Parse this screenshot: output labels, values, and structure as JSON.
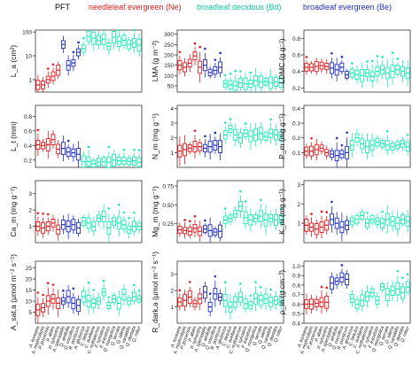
{
  "legend": {
    "title": "PFT",
    "items": [
      {
        "label": "needleleaf evergreen (Ne)",
        "color": "#e41a1c"
      },
      {
        "label": "broadleaf decidous (Bd)",
        "color": "#1de9b6"
      },
      {
        "label": "broadleaf evergreen (Be)",
        "color": "#1f2fbf"
      }
    ]
  },
  "species": [
    "A. koreana",
    "A. nephrolepis",
    "P. jezoensis",
    "P. abies",
    "P. sylvestris",
    "A. spectabilis",
    "Q. alnifolia",
    "Q. coccifera",
    "R. ponticum",
    "A. glutinosa",
    "C. betulus",
    "C. avellana",
    "C. nutkatensis",
    "F. sylvatica",
    "F. excelsior",
    "Q. mongolica",
    "Q. serrata",
    "Q. aliena",
    "Q. variabilis",
    "Q. dentata",
    "Q. robur"
  ],
  "species_pft": [
    "Ne",
    "Ne",
    "Ne",
    "Ne",
    "Ne",
    "Be",
    "Be",
    "Be",
    "Be",
    "Bd",
    "Bd",
    "Bd",
    "Bd",
    "Bd",
    "Bd",
    "Bd",
    "Bd",
    "Bd",
    "Bd",
    "Bd",
    "Bd"
  ],
  "chart_data": [
    {
      "type": "box",
      "ylabel": "L_a (cm²)",
      "scale": "log",
      "ylim": [
        0.3,
        120
      ],
      "ticks": [
        1,
        10,
        100
      ],
      "tick_labels": [
        "1",
        "10",
        "100"
      ],
      "medians": [
        0.6,
        0.6,
        1.0,
        1.4,
        2.5,
        30,
        4,
        5,
        14,
        20,
        65,
        55,
        45,
        50,
        25,
        60,
        40,
        45,
        30,
        35,
        28
      ]
    },
    {
      "type": "box",
      "ylabel": "LMA (g m⁻²)",
      "scale": "linear",
      "ylim": [
        20,
        320
      ],
      "ticks": [
        50,
        100,
        150,
        200,
        250,
        300
      ],
      "tick_labels": [
        "50",
        "100",
        "150",
        "200",
        "250",
        "300"
      ],
      "medians": [
        150,
        140,
        160,
        195,
        140,
        150,
        115,
        125,
        140,
        60,
        55,
        50,
        65,
        60,
        60,
        75,
        70,
        70,
        65,
        70,
        65
      ]
    },
    {
      "type": "box",
      "ylabel": "LDMC (g g⁻¹)",
      "scale": "linear",
      "ylim": [
        0.15,
        0.9
      ],
      "ticks": [
        0.2,
        0.4,
        0.6,
        0.8
      ],
      "tick_labels": [
        "0.2",
        "0.4",
        "0.6",
        "0.8"
      ],
      "medians": [
        0.45,
        0.45,
        0.46,
        0.47,
        0.46,
        0.44,
        0.42,
        0.45,
        0.36,
        0.38,
        0.36,
        0.35,
        0.38,
        0.34,
        0.4,
        0.42,
        0.38,
        0.4,
        0.42,
        0.4,
        0.38
      ]
    },
    {
      "type": "box",
      "ylabel": "L_t (mm)",
      "scale": "linear",
      "ylim": [
        0.1,
        0.95
      ],
      "ticks": [
        0.2,
        0.4,
        0.6,
        0.8
      ],
      "tick_labels": [
        "0.2",
        "0.4",
        "0.6",
        "0.8"
      ],
      "medians": [
        0.41,
        0.4,
        0.41,
        0.48,
        0.35,
        0.36,
        0.31,
        0.3,
        0.28,
        0.18,
        0.18,
        0.15,
        0.17,
        0.18,
        0.17,
        0.2,
        0.19,
        0.19,
        0.18,
        0.19,
        0.17
      ]
    },
    {
      "type": "box",
      "ylabel": "N_m (mg g⁻¹)",
      "scale": "linear",
      "ylim": [
        0,
        4.2
      ],
      "ticks": [
        1,
        2,
        3,
        4
      ],
      "tick_labels": [
        "1",
        "2",
        "3",
        "4"
      ],
      "medians": [
        1.1,
        1.2,
        1.3,
        1.4,
        1.4,
        1.3,
        1.4,
        1.5,
        1.4,
        2.2,
        2.6,
        2.2,
        2.0,
        2.3,
        2.1,
        2.2,
        2.3,
        2.1,
        2.3,
        2.2,
        2.1
      ]
    },
    {
      "type": "box",
      "ylabel": "P_m (mg g⁻¹)",
      "scale": "linear",
      "ylim": [
        0,
        0.42
      ],
      "ticks": [
        0.1,
        0.2,
        0.3,
        0.4
      ],
      "tick_labels": [
        "0.1",
        "0.2",
        "0.3",
        "0.4"
      ],
      "medians": [
        0.11,
        0.11,
        0.12,
        0.13,
        0.1,
        0.09,
        0.08,
        0.09,
        0.1,
        0.15,
        0.2,
        0.16,
        0.14,
        0.15,
        0.17,
        0.16,
        0.15,
        0.14,
        0.15,
        0.16,
        0.14
      ]
    },
    {
      "type": "box",
      "ylabel": "Ca_m (mg g⁻¹)",
      "scale": "linear",
      "ylim": [
        0,
        3.8
      ],
      "ticks": [
        1,
        2,
        3
      ],
      "tick_labels": [
        "1",
        "2",
        "3"
      ],
      "medians": [
        1.0,
        0.9,
        1.0,
        1.2,
        0.8,
        1.1,
        1.0,
        1.1,
        0.9,
        1.3,
        1.2,
        1.0,
        1.5,
        1.6,
        0.9,
        1.3,
        1.2,
        1.1,
        0.8,
        1.0,
        1.0
      ]
    },
    {
      "type": "box",
      "ylabel": "Mg_m (mg g⁻¹)",
      "scale": "linear",
      "ylim": [
        0,
        0.82
      ],
      "ticks": [
        0.25,
        0.5,
        0.75
      ],
      "tick_labels": [
        "0.25",
        "0.50",
        "0.75"
      ],
      "medians": [
        0.17,
        0.16,
        0.15,
        0.19,
        0.15,
        0.18,
        0.16,
        0.14,
        0.15,
        0.3,
        0.32,
        0.38,
        0.48,
        0.33,
        0.3,
        0.32,
        0.35,
        0.3,
        0.32,
        0.3,
        0.31
      ]
    },
    {
      "type": "box",
      "ylabel": "K_m (mg g⁻¹)",
      "scale": "linear",
      "ylim": [
        0,
        3.2
      ],
      "ticks": [
        1,
        2,
        3
      ],
      "tick_labels": [
        "1",
        "2",
        "3"
      ],
      "medians": [
        0.9,
        0.8,
        0.7,
        0.8,
        0.9,
        1.2,
        1.0,
        0.8,
        0.9,
        1.1,
        1.2,
        1.4,
        1.0,
        1.2,
        1.1,
        1.0,
        1.2,
        1.1,
        1.0,
        1.2,
        1.1
      ]
    },
    {
      "type": "box",
      "ylabel": "A_sat,a (μmol m⁻² s⁻¹)",
      "scale": "linear",
      "ylim": [
        0,
        28
      ],
      "ticks": [
        5,
        10,
        15,
        20,
        25
      ],
      "tick_labels": [
        "5",
        "10",
        "15",
        "20",
        "25"
      ],
      "medians": [
        6,
        7,
        10,
        11,
        9,
        10,
        12,
        9,
        8,
        12,
        10,
        9,
        10,
        14,
        8,
        11,
        9,
        13,
        10,
        12,
        11
      ]
    },
    {
      "type": "box",
      "ylabel": "R_dark,a (μmol m⁻² s⁻¹)",
      "scale": "linear",
      "ylim": [
        0,
        3.8
      ],
      "ticks": [
        1,
        2,
        3
      ],
      "tick_labels": [
        "1",
        "2",
        "3"
      ],
      "medians": [
        1.3,
        1.4,
        1.6,
        1.2,
        1.5,
        1.9,
        1.0,
        1.8,
        1.6,
        1.4,
        1.0,
        1.3,
        1.6,
        1.2,
        1.1,
        1.5,
        1.4,
        1.5,
        1.3,
        1.4,
        1.3
      ]
    },
    {
      "type": "box",
      "ylabel": "ρ_m (g cm⁻³)",
      "scale": "linear",
      "ylim": [
        0.4,
        1.05
      ],
      "ticks": [
        0.4,
        0.5,
        0.6,
        0.7,
        0.8,
        0.9,
        1.0
      ],
      "tick_labels": [
        "0.4",
        "0.5",
        "0.6",
        "0.7",
        "0.8",
        "0.9",
        "1.0"
      ],
      "medians": [
        0.6,
        0.6,
        0.61,
        0.62,
        0.62,
        0.82,
        0.84,
        0.88,
        0.86,
        0.66,
        0.6,
        0.64,
        0.68,
        0.72,
        0.64,
        0.78,
        0.7,
        0.74,
        0.76,
        0.72,
        0.78
      ]
    }
  ]
}
